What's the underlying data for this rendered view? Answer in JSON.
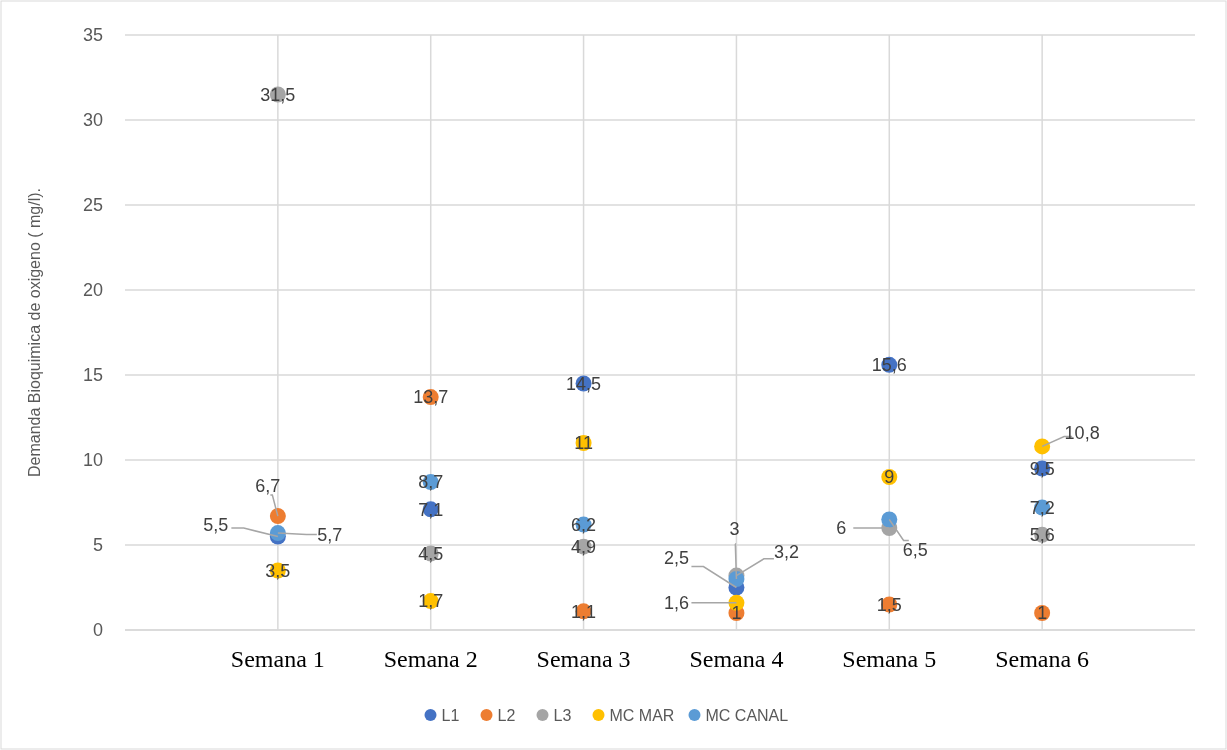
{
  "chart_data": {
    "type": "scatter",
    "ylabel": "Demanda Bioquimica de oxigeno ( mg/l).",
    "categories": [
      "Semana 1",
      "Semana 2",
      "Semana 3",
      "Semana 4",
      "Semana 5",
      "Semana 6"
    ],
    "series": [
      {
        "name": "L1",
        "color": "#4472c4",
        "values": [
          5.5,
          7.1,
          14.5,
          2.5,
          15.6,
          9.5
        ],
        "value_labels": [
          "5,5",
          "7,1",
          "14,5",
          "2,5",
          "15,6",
          "9,5"
        ]
      },
      {
        "name": "L2",
        "color": "#ed7d31",
        "values": [
          6.7,
          13.7,
          1.1,
          1,
          1.5,
          1
        ],
        "value_labels": [
          "6,7",
          "13,7",
          "1,1",
          "1",
          "1,5",
          "1"
        ]
      },
      {
        "name": "L3",
        "color": "#a5a5a5",
        "values": [
          31.5,
          4.5,
          4.9,
          3.2,
          6,
          5.6
        ],
        "value_labels": [
          "31,5",
          "4,5",
          "4,9",
          "3,2",
          "6",
          "5,6"
        ]
      },
      {
        "name": "MC MAR",
        "color": "#ffc000",
        "values": [
          3.5,
          1.7,
          11,
          1.6,
          9,
          10.8
        ],
        "value_labels": [
          "3,5",
          "1,7",
          "11",
          "1,6",
          "9",
          "10,8"
        ]
      },
      {
        "name": "MC CANAL",
        "color": "#5b9bd5",
        "values": [
          5.7,
          8.7,
          6.2,
          3,
          6.5,
          7.2
        ],
        "value_labels": [
          "5,7",
          "8,7",
          "6,2",
          "3",
          "6,5",
          "7,2"
        ]
      }
    ],
    "ylim": [
      0,
      35
    ],
    "yticks": [
      0,
      5,
      10,
      15,
      20,
      25,
      30,
      35
    ],
    "grid": true,
    "legend": "bottom",
    "marker": "circle"
  }
}
